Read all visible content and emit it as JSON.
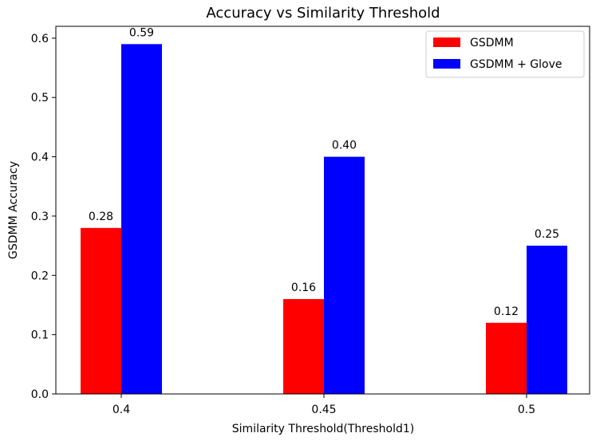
{
  "chart_data": {
    "type": "bar",
    "title": "Accuracy vs Similarity Threshold",
    "xlabel": "Similarity Threshold(Threshold1)",
    "ylabel": "GSDMM Accuracy",
    "categories": [
      "0.4",
      "0.45",
      "0.5"
    ],
    "series": [
      {
        "name": "GSDMM",
        "color": "#ff0000",
        "values": [
          0.28,
          0.16,
          0.12
        ],
        "labels": [
          "0.28",
          "0.16",
          "0.12"
        ]
      },
      {
        "name": "GSDMM + Glove",
        "color": "#0000ff",
        "values": [
          0.59,
          0.4,
          0.25
        ],
        "labels": [
          "0.59",
          "0.40",
          "0.25"
        ]
      }
    ],
    "ylim": [
      0,
      0.62
    ],
    "yticks": [
      0.0,
      0.1,
      0.2,
      0.3,
      0.4,
      0.5,
      0.6
    ],
    "ytick_labels": [
      "0.0",
      "0.1",
      "0.2",
      "0.3",
      "0.4",
      "0.5",
      "0.6"
    ],
    "grid": false,
    "legend_position": "top-right"
  }
}
